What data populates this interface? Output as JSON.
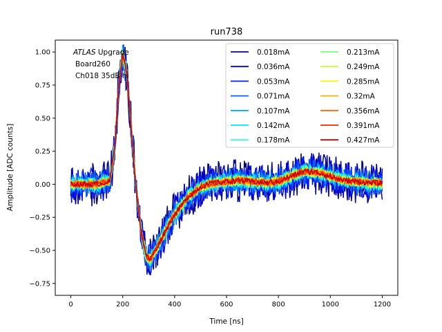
{
  "chart_data": {
    "type": "line",
    "title": "run738",
    "xlabel": "Time [ns]",
    "ylabel": "Amplitude [ADC counts]",
    "xlim": [
      -60,
      1260
    ],
    "ylim": [
      -0.84,
      1.09
    ],
    "xticks": [
      0,
      200,
      400,
      600,
      800,
      1000,
      1200
    ],
    "yticks": [
      -0.75,
      -0.5,
      -0.25,
      0.0,
      0.25,
      0.5,
      0.75,
      1.0
    ],
    "xtick_labels": [
      "0",
      "200",
      "400",
      "600",
      "800",
      "1000",
      "1200"
    ],
    "ytick_labels": [
      "−0.75",
      "−0.50",
      "−0.25",
      "0.00",
      "0.25",
      "0.50",
      "0.75",
      "1.00"
    ],
    "grid": false,
    "legend_position": "top-right",
    "legend_columns": 2,
    "annotation": {
      "line1_italic": "ATLAS",
      "line1_rest": " Upgrade",
      "line2": "Board260",
      "line3": "Ch018 35dB hi"
    },
    "pulse_shape": {
      "x": [
        0,
        100,
        150,
        170,
        185,
        200,
        215,
        230,
        250,
        270,
        290,
        305,
        320,
        340,
        370,
        400,
        450,
        500,
        550,
        600,
        650,
        700,
        750,
        800,
        850,
        900,
        950,
        1000,
        1050,
        1100,
        1150,
        1200
      ],
      "y": [
        0.0,
        0.0,
        0.02,
        0.3,
        0.75,
        0.98,
        0.85,
        0.5,
        0.0,
        -0.35,
        -0.54,
        -0.57,
        -0.52,
        -0.45,
        -0.33,
        -0.23,
        -0.1,
        -0.02,
        0.01,
        0.02,
        0.03,
        0.02,
        0.01,
        0.02,
        0.06,
        0.1,
        0.09,
        0.06,
        0.03,
        0.02,
        0.01,
        0.01
      ]
    },
    "series": [
      {
        "name": "0.018mA",
        "color": "#00008f",
        "noise": 0.17
      },
      {
        "name": "0.036mA",
        "color": "#0000d6",
        "noise": 0.14
      },
      {
        "name": "0.053mA",
        "color": "#0020ff",
        "noise": 0.12
      },
      {
        "name": "0.071mA",
        "color": "#0060ff",
        "noise": 0.1
      },
      {
        "name": "0.107mA",
        "color": "#00a4ff",
        "noise": 0.075
      },
      {
        "name": "0.142mA",
        "color": "#00e8ff",
        "noise": 0.06
      },
      {
        "name": "0.178mA",
        "color": "#3affc4",
        "noise": 0.05
      },
      {
        "name": "0.213mA",
        "color": "#7cff7a",
        "noise": 0.045
      },
      {
        "name": "0.249mA",
        "color": "#c4ff36",
        "noise": 0.04
      },
      {
        "name": "0.285mA",
        "color": "#fff200",
        "noise": 0.035
      },
      {
        "name": "0.32mA",
        "color": "#ffae00",
        "noise": 0.03
      },
      {
        "name": "0.356mA",
        "color": "#ff6a00",
        "noise": 0.027
      },
      {
        "name": "0.391mA",
        "color": "#ff2400",
        "noise": 0.024
      },
      {
        "name": "0.427mA",
        "color": "#c40000",
        "noise": 0.02
      }
    ]
  }
}
